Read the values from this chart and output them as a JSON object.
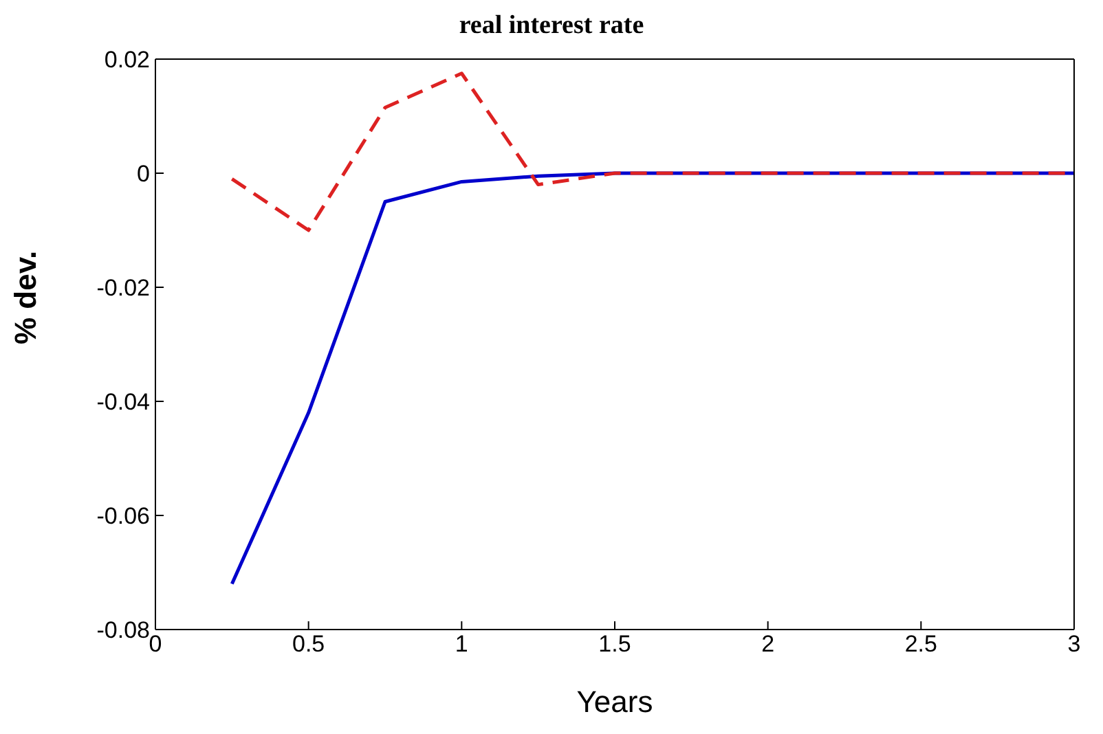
{
  "chart_data": {
    "type": "line",
    "title": "real interest rate",
    "xlabel": "Years",
    "ylabel": "% dev.",
    "x": [
      0.25,
      0.5,
      0.75,
      1,
      1.25,
      1.5,
      1.75,
      2,
      2.25,
      2.5,
      2.75,
      3
    ],
    "series": [
      {
        "color": "#0000cc",
        "line_style": "solid",
        "values": [
          -0.072,
          -0.042,
          -0.005,
          -0.0015,
          -0.0005,
          0,
          0,
          0,
          0,
          0,
          0,
          0
        ]
      },
      {
        "color": "#dd2222",
        "line_style": "dashed",
        "values": [
          -0.001,
          -0.01,
          0.0115,
          0.0175,
          -0.002,
          0,
          0,
          0,
          0,
          0,
          0,
          0
        ]
      }
    ],
    "xlim": [
      0,
      3
    ],
    "xticks": [
      0,
      0.5,
      1,
      1.5,
      2,
      2.5,
      3
    ],
    "ylim": [
      -0.08,
      0.02
    ],
    "yticks": [
      -0.08,
      -0.06,
      -0.04,
      -0.02,
      0,
      0.02
    ],
    "grid": false,
    "legend": false,
    "marker": "none"
  }
}
